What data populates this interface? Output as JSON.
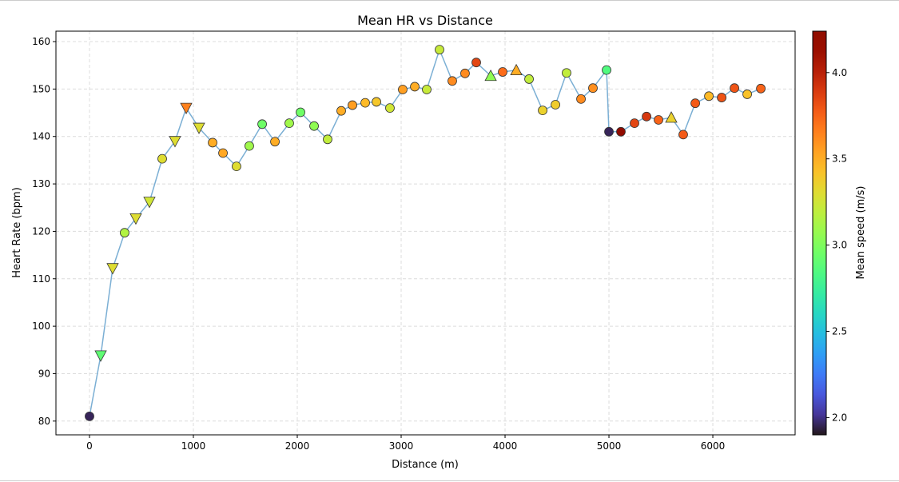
{
  "chart_data": {
    "type": "scatter",
    "title": "Mean HR vs Distance",
    "xlabel": "Distance (m)",
    "ylabel": "Heart Rate (bpm)",
    "xlim": [
      -323,
      6792
    ],
    "ylim": [
      77.1,
      162.2
    ],
    "xticks": [
      0,
      1000,
      2000,
      3000,
      4000,
      5000,
      6000
    ],
    "yticks": [
      80,
      90,
      100,
      110,
      120,
      130,
      140,
      150,
      160
    ],
    "grid": true,
    "line_color": "#7bafd4",
    "colorbar": {
      "label": "Mean speed (m/s)",
      "colormap": "turbo",
      "range": [
        1.9,
        4.24
      ],
      "ticks": [
        2.0,
        2.5,
        3.0,
        3.5,
        4.0
      ],
      "tick_labels": [
        "2.0",
        "2.5",
        "3.0",
        "3.5",
        "4.0"
      ]
    },
    "points": [
      {
        "x": 0,
        "y": 81,
        "speed": 1.95,
        "marker": "circle"
      },
      {
        "x": 108,
        "y": 93.8,
        "speed": 2.9,
        "marker": "triangle-down"
      },
      {
        "x": 223,
        "y": 112.2,
        "speed": 3.3,
        "marker": "triangle-down"
      },
      {
        "x": 338,
        "y": 119.7,
        "speed": 3.15,
        "marker": "circle"
      },
      {
        "x": 446,
        "y": 122.7,
        "speed": 3.3,
        "marker": "triangle-down"
      },
      {
        "x": 577,
        "y": 126.2,
        "speed": 3.25,
        "marker": "triangle-down"
      },
      {
        "x": 700,
        "y": 135.3,
        "speed": 3.3,
        "marker": "circle"
      },
      {
        "x": 823,
        "y": 139,
        "speed": 3.3,
        "marker": "triangle-down"
      },
      {
        "x": 931,
        "y": 146,
        "speed": 3.65,
        "marker": "triangle-down"
      },
      {
        "x": 1054,
        "y": 141.8,
        "speed": 3.3,
        "marker": "triangle-down"
      },
      {
        "x": 1185,
        "y": 138.7,
        "speed": 3.5,
        "marker": "circle"
      },
      {
        "x": 1285,
        "y": 136.5,
        "speed": 3.52,
        "marker": "circle"
      },
      {
        "x": 1415,
        "y": 133.7,
        "speed": 3.3,
        "marker": "circle"
      },
      {
        "x": 1538,
        "y": 138,
        "speed": 3.1,
        "marker": "circle"
      },
      {
        "x": 1662,
        "y": 142.6,
        "speed": 2.95,
        "marker": "circle"
      },
      {
        "x": 1785,
        "y": 138.9,
        "speed": 3.5,
        "marker": "circle"
      },
      {
        "x": 1923,
        "y": 142.8,
        "speed": 3.1,
        "marker": "circle"
      },
      {
        "x": 2031,
        "y": 145.1,
        "speed": 2.95,
        "marker": "circle"
      },
      {
        "x": 2162,
        "y": 142.2,
        "speed": 3.05,
        "marker": "circle"
      },
      {
        "x": 2292,
        "y": 139.4,
        "speed": 3.2,
        "marker": "circle"
      },
      {
        "x": 2423,
        "y": 145.4,
        "speed": 3.5,
        "marker": "circle"
      },
      {
        "x": 2531,
        "y": 146.6,
        "speed": 3.55,
        "marker": "circle"
      },
      {
        "x": 2654,
        "y": 147.1,
        "speed": 3.45,
        "marker": "circle"
      },
      {
        "x": 2762,
        "y": 147.3,
        "speed": 3.4,
        "marker": "circle"
      },
      {
        "x": 2892,
        "y": 146,
        "speed": 3.25,
        "marker": "circle"
      },
      {
        "x": 3015,
        "y": 149.9,
        "speed": 3.55,
        "marker": "circle"
      },
      {
        "x": 3131,
        "y": 150.5,
        "speed": 3.5,
        "marker": "circle"
      },
      {
        "x": 3246,
        "y": 149.9,
        "speed": 3.22,
        "marker": "circle"
      },
      {
        "x": 3369,
        "y": 158.3,
        "speed": 3.22,
        "marker": "circle"
      },
      {
        "x": 3492,
        "y": 151.7,
        "speed": 3.62,
        "marker": "circle"
      },
      {
        "x": 3615,
        "y": 153.3,
        "speed": 3.62,
        "marker": "circle"
      },
      {
        "x": 3723,
        "y": 155.6,
        "speed": 3.85,
        "marker": "circle"
      },
      {
        "x": 3862,
        "y": 152.8,
        "speed": 3.05,
        "marker": "triangle-up"
      },
      {
        "x": 3977,
        "y": 153.6,
        "speed": 3.72,
        "marker": "circle"
      },
      {
        "x": 4108,
        "y": 154,
        "speed": 3.5,
        "marker": "triangle-up"
      },
      {
        "x": 4231,
        "y": 152.1,
        "speed": 3.2,
        "marker": "circle"
      },
      {
        "x": 4362,
        "y": 145.5,
        "speed": 3.35,
        "marker": "circle"
      },
      {
        "x": 4485,
        "y": 146.7,
        "speed": 3.38,
        "marker": "circle"
      },
      {
        "x": 4592,
        "y": 153.4,
        "speed": 3.2,
        "marker": "circle"
      },
      {
        "x": 4731,
        "y": 147.9,
        "speed": 3.62,
        "marker": "circle"
      },
      {
        "x": 4846,
        "y": 150.2,
        "speed": 3.6,
        "marker": "circle"
      },
      {
        "x": 4977,
        "y": 154,
        "speed": 2.85,
        "marker": "circle"
      },
      {
        "x": 5000,
        "y": 141,
        "speed": 1.95,
        "marker": "circle"
      },
      {
        "x": 5115,
        "y": 141,
        "speed": 4.2,
        "marker": "circle"
      },
      {
        "x": 5246,
        "y": 142.8,
        "speed": 3.85,
        "marker": "circle"
      },
      {
        "x": 5362,
        "y": 144.2,
        "speed": 3.9,
        "marker": "circle"
      },
      {
        "x": 5477,
        "y": 143.5,
        "speed": 3.75,
        "marker": "circle"
      },
      {
        "x": 5600,
        "y": 144,
        "speed": 3.35,
        "marker": "triangle-up"
      },
      {
        "x": 5715,
        "y": 140.4,
        "speed": 3.78,
        "marker": "circle"
      },
      {
        "x": 5831,
        "y": 147,
        "speed": 3.78,
        "marker": "circle"
      },
      {
        "x": 5962,
        "y": 148.5,
        "speed": 3.45,
        "marker": "circle"
      },
      {
        "x": 6085,
        "y": 148.2,
        "speed": 3.8,
        "marker": "circle"
      },
      {
        "x": 6208,
        "y": 150.2,
        "speed": 3.8,
        "marker": "circle"
      },
      {
        "x": 6331,
        "y": 148.9,
        "speed": 3.42,
        "marker": "circle"
      },
      {
        "x": 6462,
        "y": 150.1,
        "speed": 3.75,
        "marker": "circle"
      }
    ]
  }
}
